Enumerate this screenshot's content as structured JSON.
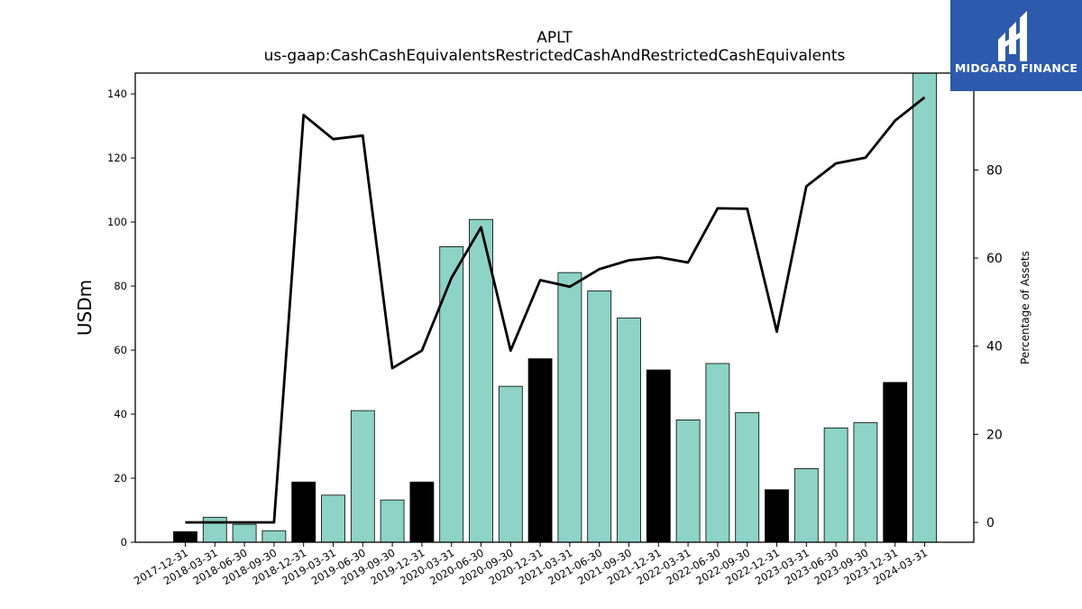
{
  "brand": {
    "name": "MIDGARD FINANCE",
    "accent": "#2d5aac"
  },
  "chart_data": {
    "type": "bar",
    "title": "APLT",
    "subtitle": "us-gaap:CashCashEquivalentsRestrictedCashAndRestrictedCashEquivalents",
    "ylabel": "USDm",
    "y2label": "Percentage of Assets",
    "ylim": [
      0,
      146.5
    ],
    "y2lim": [
      -4.5,
      102
    ],
    "yticks": [
      0,
      20,
      40,
      60,
      80,
      100,
      120,
      140
    ],
    "y2ticks": [
      0,
      20,
      40,
      60,
      80
    ],
    "grid": false,
    "colors": {
      "bar_default": "#8dd3c7",
      "bar_year_end": "#000000",
      "line": "#000000"
    },
    "categories": [
      "2017-12-31",
      "2018-03-31",
      "2018-06-30",
      "2018-09-30",
      "2018-12-31",
      "2019-03-31",
      "2019-06-30",
      "2019-09-30",
      "2019-12-31",
      "2020-03-31",
      "2020-06-30",
      "2020-09-30",
      "2020-12-31",
      "2021-03-31",
      "2021-06-30",
      "2021-09-30",
      "2021-12-31",
      "2022-03-31",
      "2022-06-30",
      "2022-09-30",
      "2022-12-31",
      "2023-03-31",
      "2023-06-30",
      "2023-09-30",
      "2023-12-31",
      "2024-03-31"
    ],
    "series": [
      {
        "type": "bar",
        "axis": "left",
        "values": [
          3.3,
          7.8,
          5.6,
          3.6,
          18.8,
          14.7,
          41.1,
          13.2,
          18.8,
          92.3,
          100.8,
          48.7,
          57.3,
          84.2,
          78.5,
          70.0,
          53.8,
          38.2,
          55.8,
          40.5,
          16.4,
          23.0,
          35.7,
          37.3,
          49.9,
          146.5
        ]
      },
      {
        "type": "line",
        "axis": "right",
        "values": [
          0,
          0,
          0,
          0,
          92.5,
          87.0,
          87.8,
          35.0,
          39.0,
          55.5,
          67.0,
          39.0,
          55.0,
          53.5,
          57.5,
          59.5,
          60.2,
          59.0,
          71.3,
          71.2,
          43.3,
          76.3,
          81.5,
          82.8,
          91.2,
          96.5
        ]
      }
    ]
  }
}
